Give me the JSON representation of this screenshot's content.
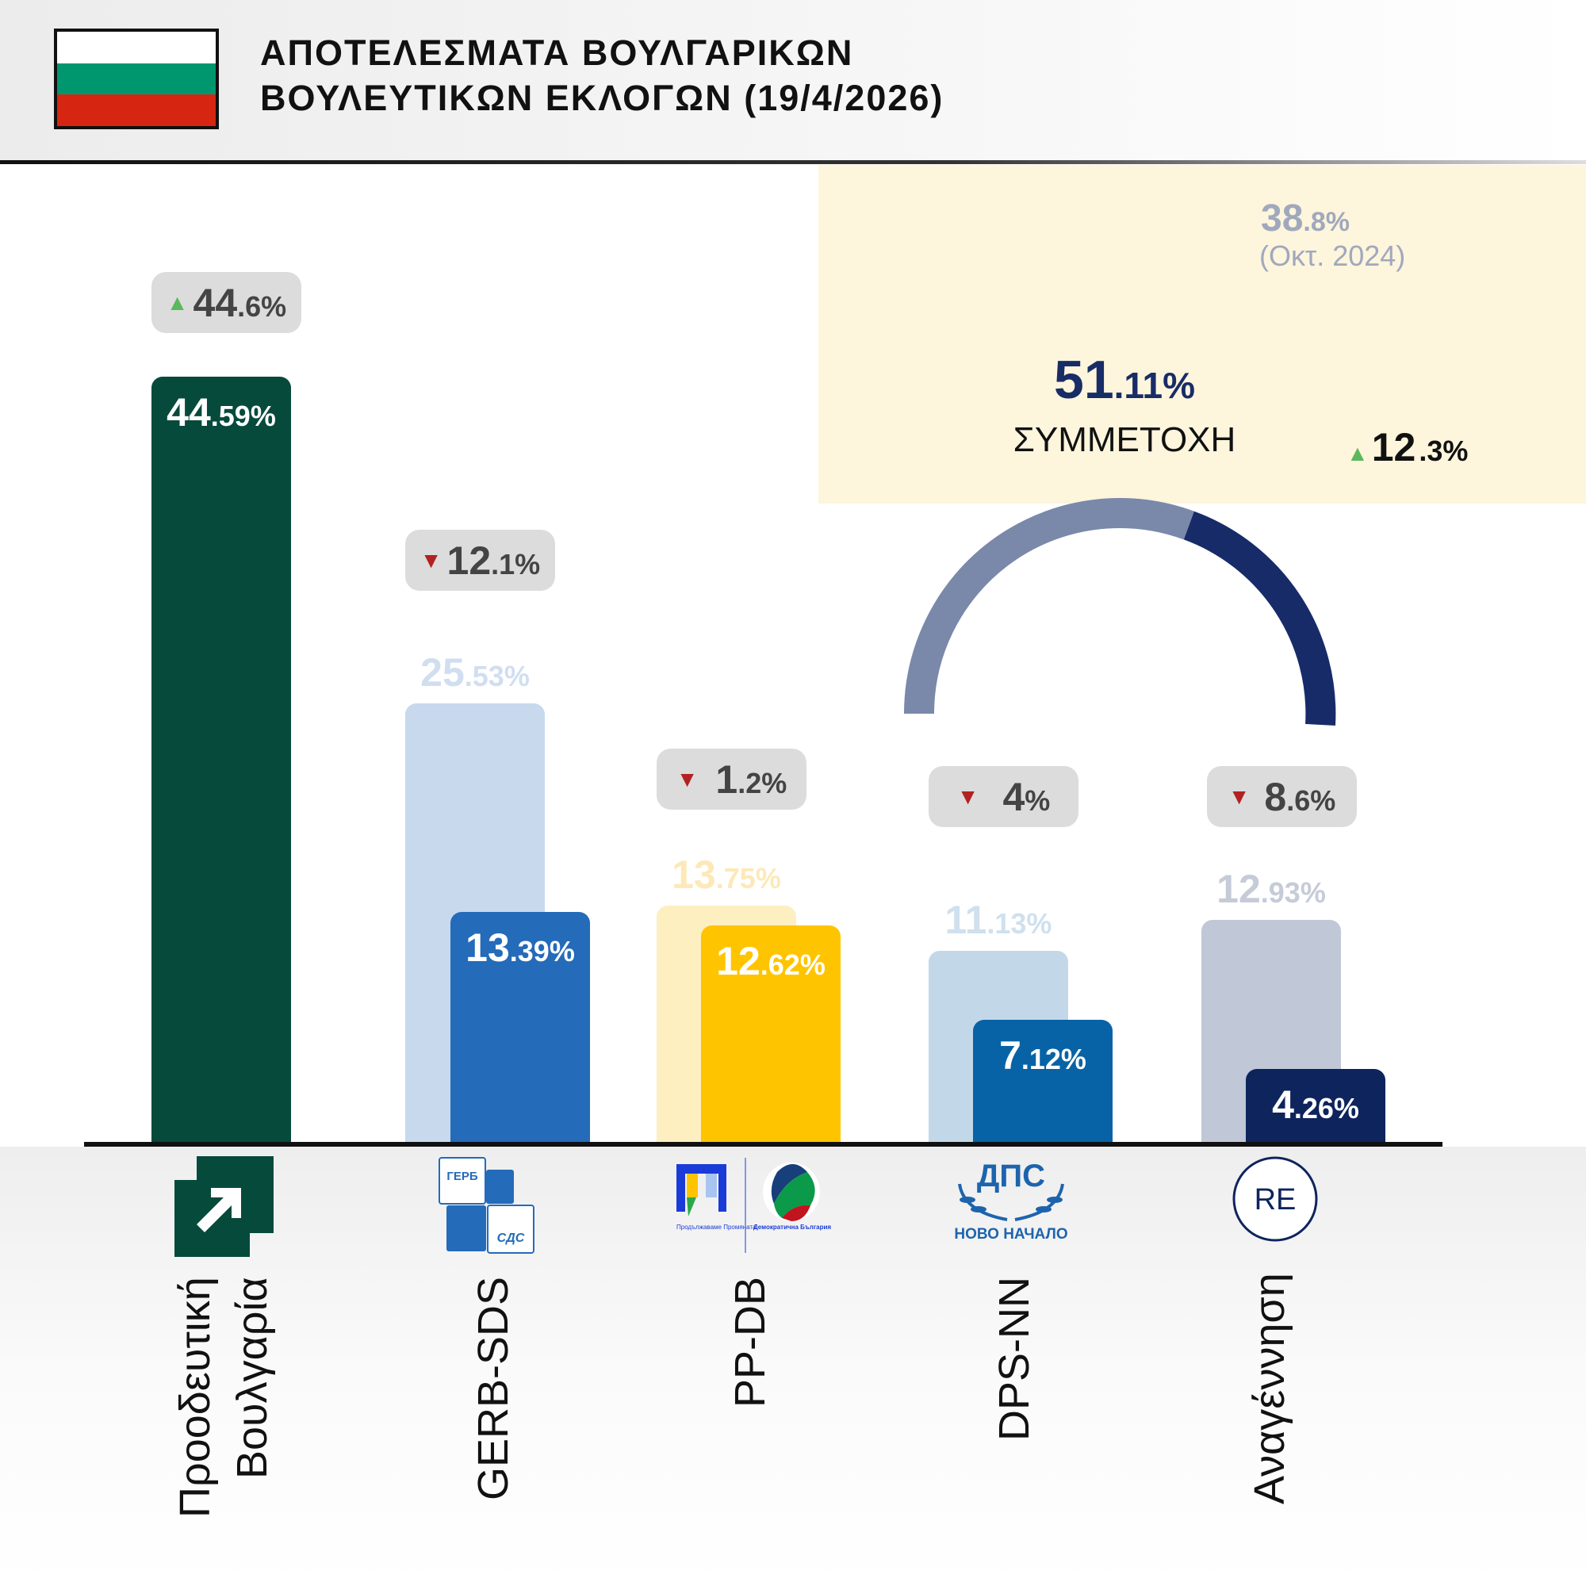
{
  "header": {
    "title_line1": "ΑΠΟΤΕΛΕΣΜΑΤΑ ΒΟΥΛΓΑΡΙΚΩΝ",
    "title_line2": "ΒΟΥΛΕΥΤΙΚΩΝ ΕΚΛΟΓΩΝ (19/4/2026)",
    "flag_colors": [
      "#ffffff",
      "#00966e",
      "#d62612"
    ]
  },
  "turnout": {
    "value": 51.11,
    "value_main": "51",
    "value_dec": ".11%",
    "label": "ΣΥΜΜΕΤΟΧΗ",
    "previous": 38.8,
    "previous_main": "38",
    "previous_dec": ".8%",
    "previous_label": "(Οκτ. 2024)",
    "change_main": "12",
    "change_dec": ".3%",
    "change_dir": "up",
    "arrow_up": "▲",
    "arrow_down": "▼"
  },
  "parties": [
    {
      "name1": "Προοδευτική",
      "name2": "Βουλγαρία",
      "new_main": "44",
      "new_dec": ".59%",
      "old_main": "",
      "old_dec": "",
      "ch_main": "44",
      "ch_dec": ".6%",
      "ch_dir": "up",
      "color": "#064a3c",
      "old_color": "#064a3c"
    },
    {
      "name1": "GERB-SDS",
      "new_main": "13",
      "new_dec": ".39%",
      "old_main": "25",
      "old_dec": ".53%",
      "ch_main": "12",
      "ch_dec": ".1%",
      "ch_dir": "down",
      "color": "#246bb9",
      "old_color": "#c8d9ee",
      "logo_text1": "ГЕРБ",
      "logo_text2": "СДС"
    },
    {
      "name1": "PP-DB",
      "new_main": "12",
      "new_dec": ".62%",
      "old_main": "13",
      "old_dec": ".75%",
      "ch_main": "1",
      "ch_dec": ".2%",
      "ch_dir": "down",
      "color": "#ffc400",
      "old_color": "#fdefc0",
      "logo_text1": "Продължаваме Промяната",
      "logo_text2": "Демократична България"
    },
    {
      "name1": "DPS-NN",
      "new_main": "7",
      "new_dec": ".12%",
      "old_main": "11",
      "old_dec": ".13%",
      "ch_main": "4",
      "ch_dec": "%",
      "ch_dir": "down",
      "color": "#0763a6",
      "old_color": "#c2d8e8",
      "logo_text1": "ДПС",
      "logo_text2": "НОВО НАЧАЛО"
    },
    {
      "name1": "Αναγέννηση",
      "new_main": "4",
      "new_dec": ".26%",
      "old_main": "12",
      "old_dec": ".93%",
      "ch_main": "8",
      "ch_dec": ".6%",
      "ch_dir": "down",
      "color": "#0e245c",
      "old_color": "#c0c7d6",
      "logo_text1": "RE"
    }
  ],
  "chart_data": {
    "type": "bar",
    "title": "ΑΠΟΤΕΛΕΣΜΑΤΑ ΒΟΥΛΓΑΡΙΚΩΝ ΒΟΥΛΕΥΤΙΚΩΝ ΕΚΛΟΓΩΝ (19/4/2026)",
    "categories": [
      "Προοδευτική Βουλγαρία",
      "GERB-SDS",
      "PP-DB",
      "DPS-NN",
      "Αναγέννηση"
    ],
    "series": [
      {
        "name": "2026",
        "values": [
          44.59,
          13.39,
          12.62,
          7.12,
          4.26
        ]
      },
      {
        "name": "Oct 2024",
        "values": [
          null,
          25.53,
          13.75,
          11.13,
          12.93
        ]
      }
    ],
    "change": [
      44.6,
      -12.1,
      -1.2,
      -4,
      -8.6
    ],
    "ylim": [
      0,
      46
    ],
    "turnout": {
      "current": 51.11,
      "previous": 38.8,
      "change": 12.3
    }
  }
}
